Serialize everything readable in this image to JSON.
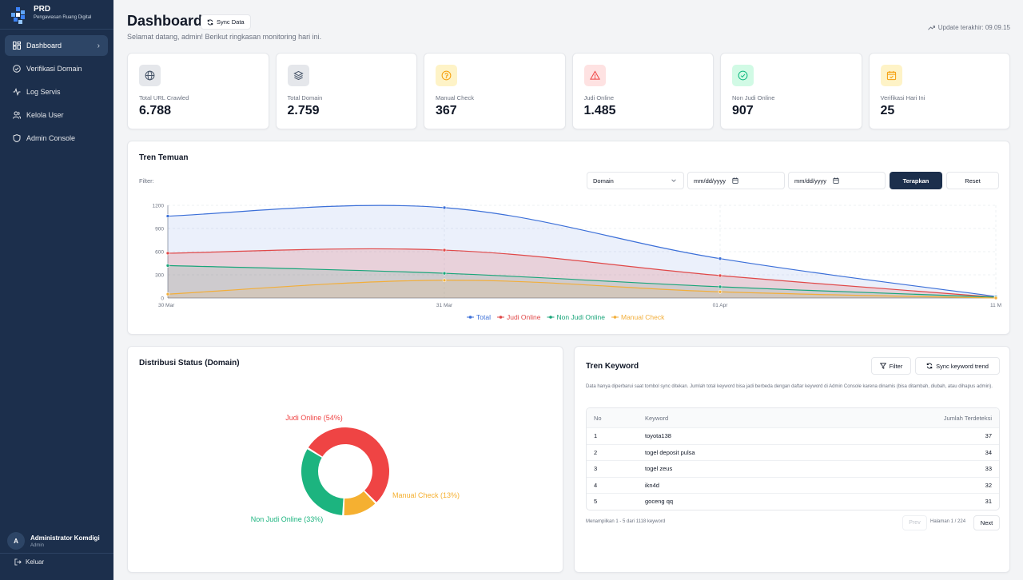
{
  "sidebar": {
    "brand_title": "PRD",
    "brand_subtitle": "Pengawasan Ruang Digital",
    "items": [
      {
        "label": "Dashboard",
        "icon": "dashboard-icon",
        "active": true
      },
      {
        "label": "Verifikasi Domain",
        "icon": "check-circle-icon"
      },
      {
        "label": "Log Servis",
        "icon": "activity-icon"
      },
      {
        "label": "Kelola User",
        "icon": "users-icon"
      },
      {
        "label": "Admin Console",
        "icon": "shield-icon"
      }
    ],
    "user": {
      "initial": "A",
      "name": "Administrator Komdigi",
      "role": "Admin"
    },
    "logout_label": "Keluar"
  },
  "header": {
    "title": "Dashboard",
    "sync_label": "Sync Data",
    "welcome": "Selamat datang, admin! Berikut ringkasan monitoring hari ini.",
    "update": "Update terakhir: 09.09.15"
  },
  "stats": [
    {
      "label": "Total URL Crawled",
      "value": "6.788",
      "icon": "globe-icon",
      "color": "#475569",
      "bg": "#e5e7eb"
    },
    {
      "label": "Total Domain",
      "value": "2.759",
      "icon": "layers-icon",
      "color": "#475569",
      "bg": "#e5e7eb"
    },
    {
      "label": "Manual Check",
      "value": "367",
      "icon": "help-circle-icon",
      "color": "#f59e0b",
      "bg": "#fef3c7"
    },
    {
      "label": "Judi Online",
      "value": "1.485",
      "icon": "alert-triangle-icon",
      "color": "#ef4444",
      "bg": "#fee2e2"
    },
    {
      "label": "Non Judi Online",
      "value": "907",
      "icon": "check-circle-icon",
      "color": "#10b981",
      "bg": "#d1fae5"
    },
    {
      "label": "Verifikasi Hari Ini",
      "value": "25",
      "icon": "calendar-icon",
      "color": "#f59e0b",
      "bg": "#fef3c7"
    }
  ],
  "trend": {
    "title": "Tren Temuan",
    "filter_label": "Filter:",
    "select_value": "Domain",
    "date_placeholder_1": "mm/dd/yyyy",
    "date_placeholder_2": "mm/dd/yyyy",
    "apply_label": "Terapkan",
    "reset_label": "Reset"
  },
  "chart_data": [
    {
      "type": "area",
      "x": [
        "30 Mar",
        "31 Mar",
        "01 Apr",
        "11 M"
      ],
      "ylim": [
        0,
        1200
      ],
      "yticks": [
        0,
        300,
        600,
        900,
        1200
      ],
      "series": [
        {
          "name": "Total",
          "color": "#3b6fd8",
          "values": [
            1060,
            1170,
            510,
            20
          ]
        },
        {
          "name": "Judi Online",
          "color": "#e04848",
          "values": [
            580,
            620,
            290,
            10
          ]
        },
        {
          "name": "Non Judi Online",
          "color": "#1aa57a",
          "values": [
            420,
            320,
            145,
            10
          ]
        },
        {
          "name": "Manual Check",
          "color": "#f2ae3a",
          "values": [
            50,
            230,
            80,
            0
          ]
        }
      ],
      "legend": "bottom"
    },
    {
      "type": "pie",
      "title": "Distribusi Status (Domain)",
      "labels": [
        "Judi Online (54%)",
        "Manual Check (13%)",
        "Non Judi Online (33%)"
      ],
      "values": [
        54,
        13,
        33
      ],
      "colors": [
        "#ef4444",
        "#f5b031",
        "#1cb47f"
      ]
    }
  ],
  "keywords": {
    "title": "Tren Keyword",
    "filter_label": "Filter",
    "sync_label": "Sync keyword trend",
    "note": "Data hanya diperbarui saat tombol sync ditekan. Jumlah total keyword bisa jadi berbeda dengan daftar keyword di Admin Console karena dinamis (bisa ditambah, diubah, atau dihapus admin).",
    "headers": {
      "no": "No",
      "keyword": "Keyword",
      "count": "Jumlah Terdeteksi"
    },
    "rows": [
      {
        "no": "1",
        "keyword": "toyota138",
        "count": "37"
      },
      {
        "no": "2",
        "keyword": "togel deposit pulsa",
        "count": "34"
      },
      {
        "no": "3",
        "keyword": "togel zeus",
        "count": "33"
      },
      {
        "no": "4",
        "keyword": "ikn4d",
        "count": "32"
      },
      {
        "no": "5",
        "keyword": "goceng qq",
        "count": "31"
      }
    ],
    "footer": "Menampilkan 1 - 5 dari 1118 keyword",
    "prev": "Prev",
    "page": "Halaman 1 / 224",
    "next": "Next"
  }
}
